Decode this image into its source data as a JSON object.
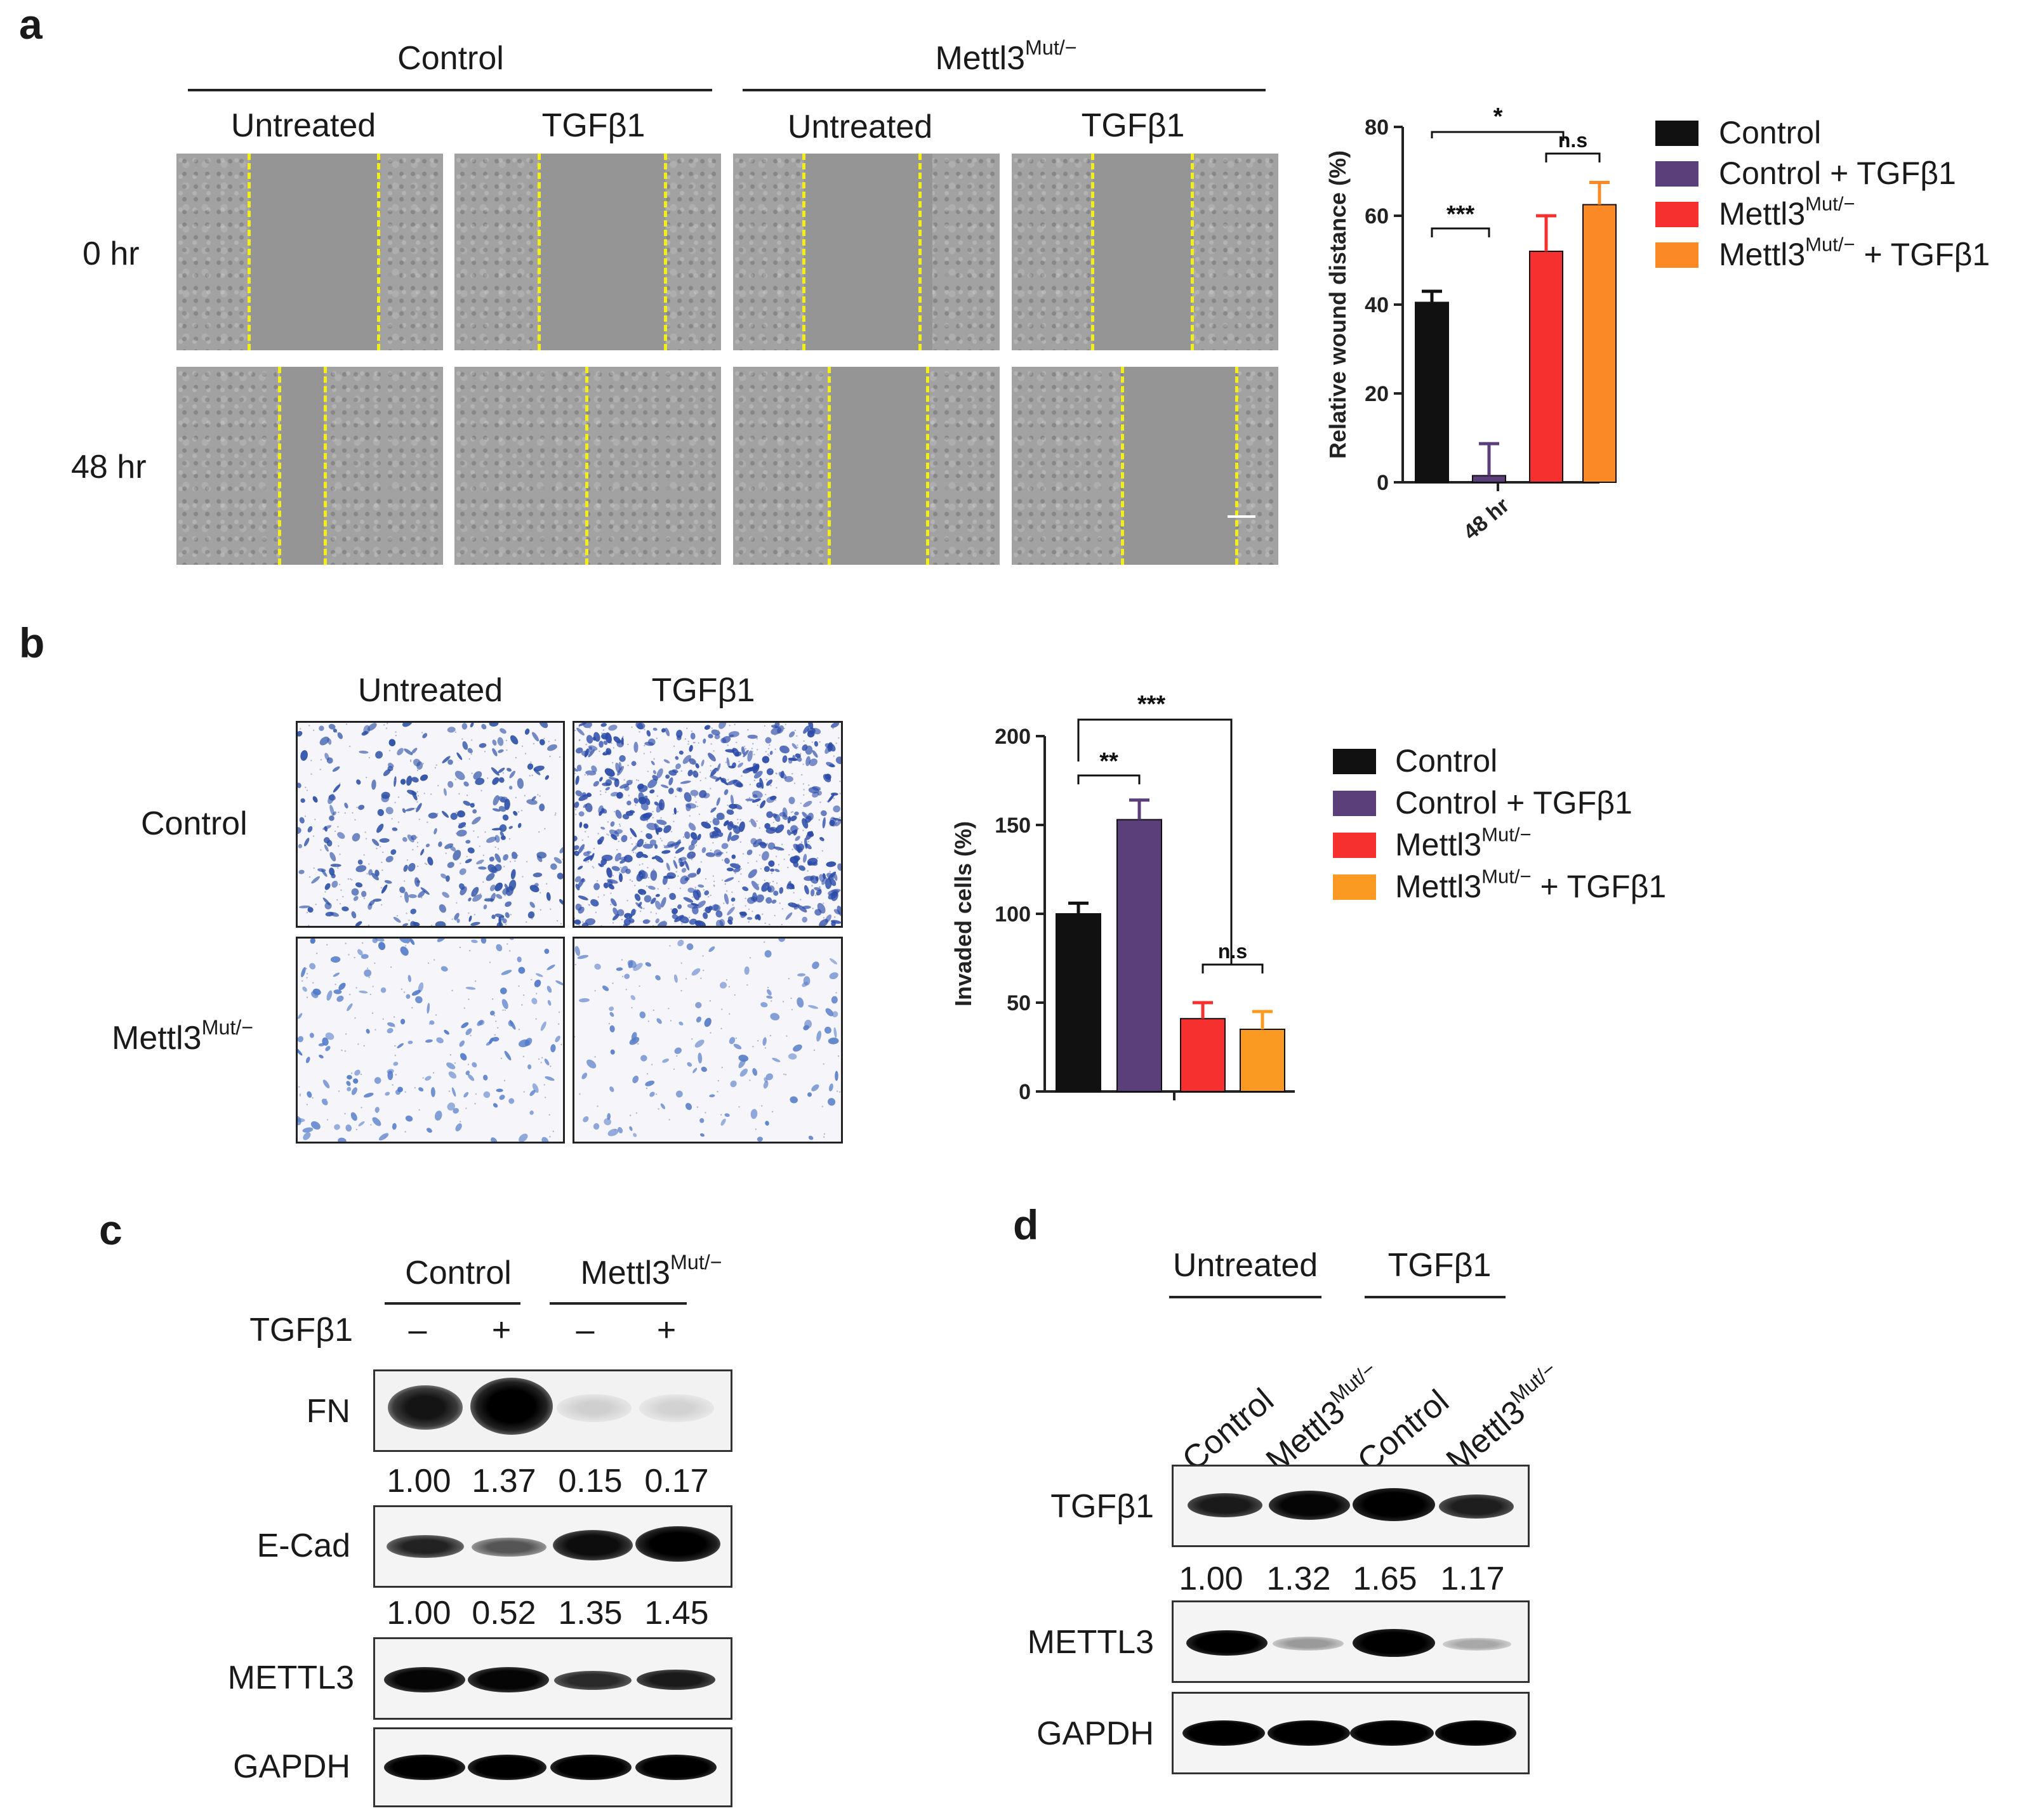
{
  "panels": {
    "a": {
      "letter": "a",
      "group_headers": [
        "Control",
        "Mettl3"
      ],
      "group_header_sup": "Mut/−",
      "column_labels": [
        "Untreated",
        "TGFβ1",
        "Untreated",
        "TGFβ1"
      ],
      "row_labels": [
        "0 hr",
        "48 hr"
      ]
    },
    "b": {
      "letter": "b",
      "column_labels": [
        "Untreated",
        "TGFβ1"
      ],
      "row_labels": [
        "Control",
        "Mettl3"
      ],
      "row_label_sup": "Mut/−"
    },
    "c": {
      "letter": "c",
      "group_headers": [
        "Control",
        "Mettl3"
      ],
      "group_header_sup": "Mut/−",
      "treatment_label": "TGFβ1",
      "treatment_marks": [
        "–",
        "+",
        "–",
        "+"
      ],
      "blots": [
        {
          "label": "FN",
          "quant": [
            "1.00",
            "1.37",
            "0.15",
            "0.17"
          ]
        },
        {
          "label": "E-Cad",
          "quant": [
            "1.00",
            "0.52",
            "1.35",
            "1.45"
          ]
        },
        {
          "label": "METTL3",
          "quant": []
        },
        {
          "label": "GAPDH",
          "quant": []
        }
      ]
    },
    "d": {
      "letter": "d",
      "group_headers": [
        "Untreated",
        "TGFβ1"
      ],
      "lane_labels": [
        "Control",
        "Mettl3",
        "Control",
        "Mettl3"
      ],
      "lane_label_sup": "Mut/−",
      "blots": [
        {
          "label": "TGFβ1",
          "quant": [
            "1.00",
            "1.32",
            "1.65",
            "1.17"
          ]
        },
        {
          "label": "METTL3",
          "quant": []
        },
        {
          "label": "GAPDH",
          "quant": []
        }
      ]
    }
  },
  "chart_data": [
    {
      "type": "bar",
      "panel": "a",
      "categories": [
        "48 hr"
      ],
      "ylabel": "Relative wound distance (%)",
      "ylim": [
        0,
        80
      ],
      "yticks": [
        0,
        20,
        40,
        60,
        80
      ],
      "series": [
        {
          "name": "Control",
          "sup": "",
          "values": [
            40.5
          ],
          "error": [
            2.5
          ],
          "color": "#111111"
        },
        {
          "name": "Control + TGFβ1",
          "sup": "",
          "values": [
            1.5
          ],
          "error": [
            7.2
          ],
          "color": "#5b3f7a"
        },
        {
          "name": "Mettl3",
          "sup": "Mut/−",
          "values": [
            52
          ],
          "error": [
            8
          ],
          "color": "#f5302e"
        },
        {
          "name": "Mettl3",
          "sup": "Mut/−",
          "suffix": " + TGFβ1",
          "values": [
            62.5
          ],
          "error": [
            5
          ],
          "color": "#fb8a26"
        }
      ],
      "significance": [
        {
          "label": "***",
          "between": [
            0,
            1
          ]
        },
        {
          "label": "n.s",
          "between": [
            2,
            3
          ]
        },
        {
          "label": "*",
          "between": [
            "0",
            "2-3"
          ]
        }
      ],
      "legend": "right"
    },
    {
      "type": "bar",
      "panel": "b",
      "categories": [
        ""
      ],
      "ylabel": "Invaded cells (%)",
      "ylim": [
        0,
        200
      ],
      "yticks": [
        0,
        50,
        100,
        150,
        200
      ],
      "series": [
        {
          "name": "Control",
          "sup": "",
          "values": [
            100
          ],
          "error": [
            6
          ],
          "color": "#111111"
        },
        {
          "name": "Control + TGFβ1",
          "sup": "",
          "values": [
            153
          ],
          "error": [
            11
          ],
          "color": "#5b3f7a"
        },
        {
          "name": "Mettl3",
          "sup": "Mut/−",
          "values": [
            41
          ],
          "error": [
            9
          ],
          "color": "#f5302e"
        },
        {
          "name": "Mettl3",
          "sup": "Mut/−",
          "suffix": " + TGFβ1",
          "values": [
            35
          ],
          "error": [
            10
          ],
          "color": "#fb9a22"
        }
      ],
      "significance": [
        {
          "label": "**",
          "between": [
            0,
            1
          ]
        },
        {
          "label": "***",
          "between": [
            "0",
            "2-3"
          ]
        },
        {
          "label": "n.s",
          "between": [
            2,
            3
          ]
        }
      ],
      "legend": "right"
    }
  ]
}
